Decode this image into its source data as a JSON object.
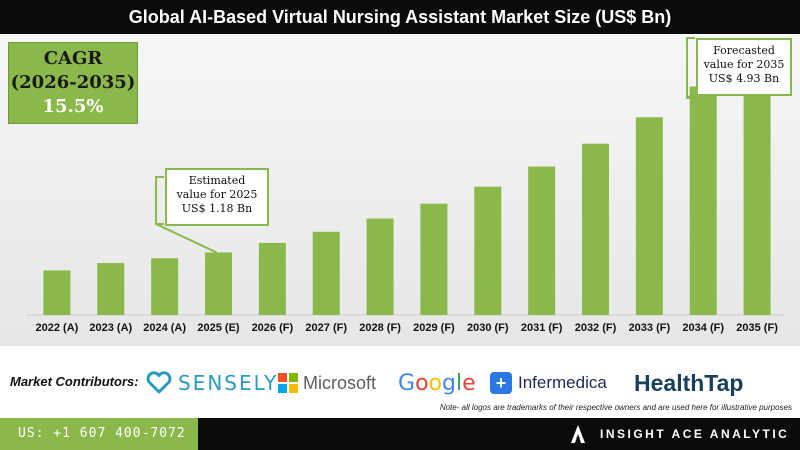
{
  "title": "Global AI-Based Virtual Nursing Assistant Market Size (US$ Bn)",
  "cagr": {
    "line1": "CAGR",
    "line2": "(2026-2035)",
    "line3": "15.5%"
  },
  "callouts": {
    "c2025": [
      "Estimated",
      "value for 2025",
      "US$ 1.18 Bn"
    ],
    "c2035": [
      "Forecasted",
      "value for 2035",
      "US$ 4.93 Bn"
    ]
  },
  "chart_data": {
    "type": "bar",
    "title": "Global AI-Based Virtual Nursing Assistant Market Size (US$ Bn)",
    "categories": [
      "2022 (A)",
      "2023 (A)",
      "2024 (A)",
      "2025 (E)",
      "2026 (F)",
      "2027 (F)",
      "2028 (F)",
      "2029 (F)",
      "2030 (F)",
      "2031 (F)",
      "2032 (F)",
      "2033 (F)",
      "2034 (F)",
      "2035 (F)"
    ],
    "values": [
      0.84,
      0.98,
      1.07,
      1.18,
      1.36,
      1.57,
      1.82,
      2.1,
      2.42,
      2.8,
      3.23,
      3.73,
      4.31,
      4.93
    ],
    "ylim": [
      0,
      5.3
    ],
    "bar_color": "#8ab84a",
    "grid": false
  },
  "contributors": {
    "label": "Market Contributors:",
    "sensely": "SENSELY",
    "microsoft": "Microsoft",
    "google": "Google",
    "infermedica": "Infermedica",
    "healthtap": "HealthTap"
  },
  "note": "Note- all logos are trademarks of their respective owners and are used here for illustrative purposes",
  "footer": {
    "phone": "US: +1 607 400-7072",
    "brand": "INSIGHT ACE ANALYTIC"
  },
  "colors": {
    "accent": "#8ab84a",
    "dark": "#0b0b0b"
  }
}
